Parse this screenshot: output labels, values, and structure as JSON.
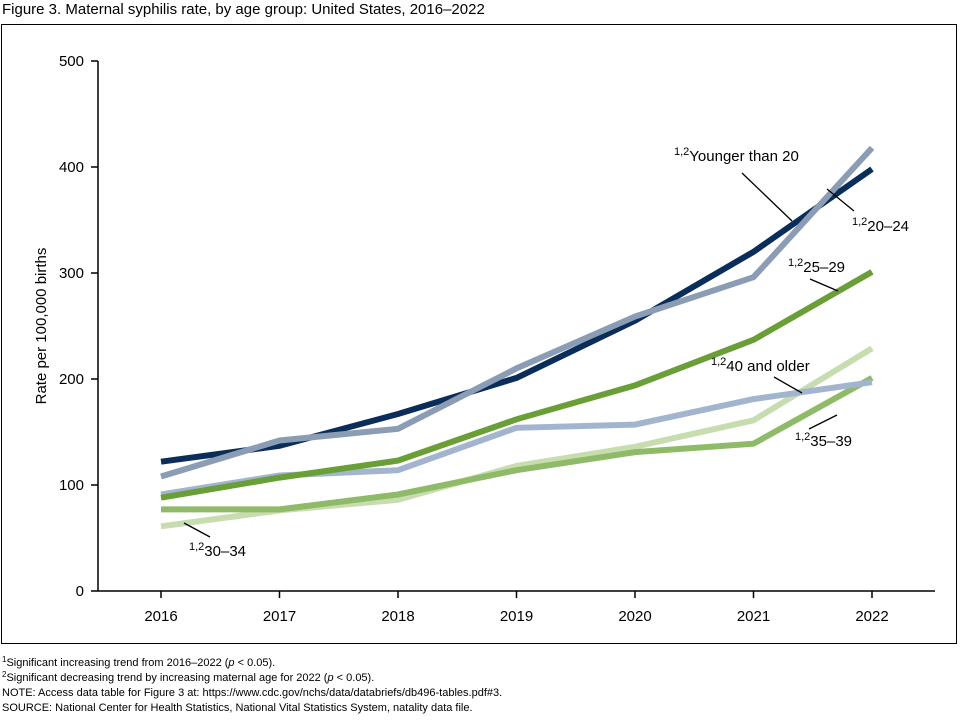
{
  "title": "Figure 3. Maternal syphilis rate, by age group: United States, 2016–2022",
  "chart_data": {
    "type": "line",
    "ylabel": "Rate per 100,000 births",
    "xlabel": "",
    "ylim": [
      0,
      500
    ],
    "yticks": [
      0,
      100,
      200,
      300,
      400,
      500
    ],
    "x": [
      "2016",
      "2017",
      "2018",
      "2019",
      "2020",
      "2021",
      "2022"
    ],
    "grid": false,
    "series": [
      {
        "name": "Younger than 20",
        "sup": "1,2",
        "color": "#0b2d5a",
        "values": [
          122,
          137,
          167,
          201,
          255,
          320,
          398
        ]
      },
      {
        "name": "20–24",
        "sup": "1,2",
        "color": "#8a9db4",
        "values": [
          108,
          142,
          153,
          210,
          259,
          296,
          418
        ]
      },
      {
        "name": "25–29",
        "sup": "1,2",
        "color": "#6a9e37",
        "values": [
          88,
          107,
          123,
          162,
          194,
          237,
          301
        ]
      },
      {
        "name": "40 and older",
        "sup": "1,2",
        "color": "#a3b5ce",
        "values": [
          91,
          109,
          114,
          154,
          157,
          181,
          197
        ]
      },
      {
        "name": "35–39",
        "sup": "1,2",
        "color": "#8fba68",
        "values": [
          77,
          77,
          91,
          114,
          131,
          139,
          201
        ]
      },
      {
        "name": "30–34",
        "sup": "1,2",
        "color": "#c7ddaf",
        "values": [
          61,
          76,
          86,
          118,
          136,
          161,
          229
        ]
      }
    ]
  },
  "footnotes": {
    "note1_mark": "1",
    "note1_pre": "Significant increasing trend from 2016–2022 (",
    "note1_p": "p",
    "note1_post": " < 0.05).",
    "note2_mark": "2",
    "note2_pre": "Significant decreasing trend by increasing maternal age for 2022 (",
    "note2_p": "p",
    "note2_post": " < 0.05).",
    "note": "NOTE: Access data table for Figure 3 at: https://www.cdc.gov/nchs/data/databriefs/db496-tables.pdf#3.",
    "source": "SOURCE: National Center for Health Statistics, National Vital Statistics System, natality data file."
  }
}
